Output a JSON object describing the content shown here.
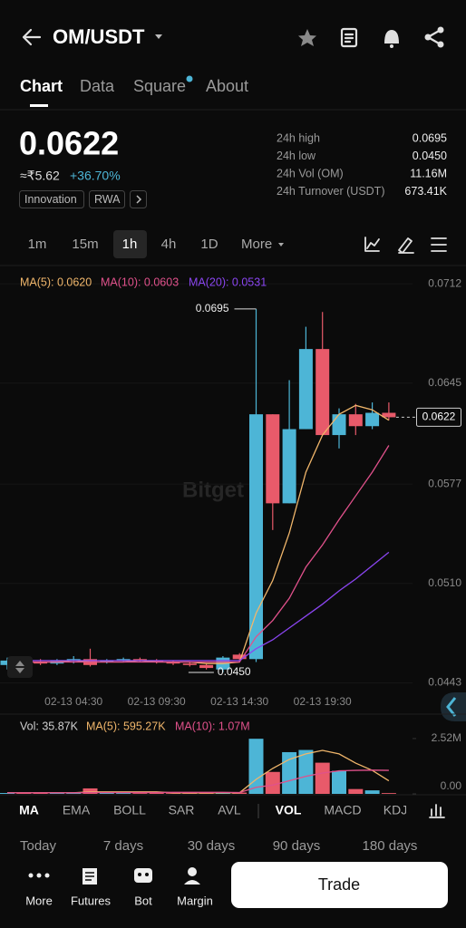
{
  "header": {
    "title": "OM/USDT"
  },
  "tabs": [
    "Chart",
    "Data",
    "Square",
    "About"
  ],
  "price": {
    "last": "0.0622",
    "local": "≈₹5.62",
    "change": "+36.70%",
    "tags": [
      "Innovation",
      "RWA"
    ]
  },
  "stats": [
    {
      "label": "24h high",
      "value": "0.0695"
    },
    {
      "label": "24h low",
      "value": "0.0450"
    },
    {
      "label": "24h Vol (OM)",
      "value": "11.16M"
    },
    {
      "label": "24h Turnover (USDT)",
      "value": "673.41K"
    }
  ],
  "intervals": [
    "1m",
    "15m",
    "1h",
    "4h",
    "1D",
    "More"
  ],
  "watermark": "Bitget",
  "chart_data": [
    {
      "type": "candlestick",
      "categories": [
        null,
        null,
        null,
        null,
        "02-13 04:30",
        null,
        null,
        null,
        null,
        "02-13 09:30",
        null,
        null,
        null,
        null,
        "02-13 14:30",
        null,
        null,
        null,
        null,
        "02-13 19:30",
        null,
        null,
        null,
        null
      ],
      "open": [
        0.0455,
        0.0458,
        0.0457,
        0.0456,
        0.0458,
        0.0459,
        0.0457,
        0.0458,
        0.0459,
        0.0458,
        0.0457,
        0.0456,
        0.0455,
        0.0452,
        0.0462,
        0.0459,
        0.0624,
        0.0564,
        0.0614,
        0.0668,
        0.061,
        0.0624,
        0.0616,
        0.0625
      ],
      "high": [
        0.046,
        0.046,
        0.0459,
        0.0459,
        0.0461,
        0.0466,
        0.0459,
        0.046,
        0.046,
        0.0459,
        0.0458,
        0.0457,
        0.0456,
        0.0461,
        0.0463,
        0.0695,
        0.0624,
        0.0647,
        0.0683,
        0.0693,
        0.0628,
        0.0631,
        0.0632,
        0.0632
      ],
      "low": [
        0.0452,
        0.0455,
        0.0455,
        0.0455,
        0.0456,
        0.0454,
        0.0456,
        0.0457,
        0.0457,
        0.0456,
        0.0455,
        0.0454,
        0.0452,
        0.045,
        0.0457,
        0.0457,
        0.0546,
        0.0564,
        0.0614,
        0.061,
        0.0601,
        0.061,
        0.0614,
        0.062
      ],
      "close": [
        0.0458,
        0.0457,
        0.0456,
        0.0458,
        0.0459,
        0.0455,
        0.0458,
        0.0459,
        0.0458,
        0.0457,
        0.0456,
        0.0455,
        0.0453,
        0.046,
        0.0459,
        0.0624,
        0.0564,
        0.0614,
        0.0668,
        0.061,
        0.0624,
        0.0616,
        0.0625,
        0.0622
      ],
      "up_color": "#4db5d6",
      "down_color": "#e85a6a",
      "series": [
        {
          "name": "MA(5): 0.0620",
          "color": "#f0b66b",
          "values": [
            0.0456,
            0.0457,
            0.0457,
            0.0457,
            0.0458,
            0.0457,
            0.0457,
            0.0457,
            0.0458,
            0.0457,
            0.0457,
            0.0457,
            0.0456,
            0.0456,
            0.0457,
            0.049,
            0.0512,
            0.0544,
            0.0585,
            0.061,
            0.0624,
            0.063,
            0.0627,
            0.062
          ]
        },
        {
          "name": "MA(10): 0.0603",
          "color": "#e0518b",
          "values": [
            0.0457,
            0.0457,
            0.0457,
            0.0457,
            0.0457,
            0.0457,
            0.0457,
            0.0457,
            0.0457,
            0.0457,
            0.0457,
            0.0457,
            0.0457,
            0.0457,
            0.0457,
            0.0474,
            0.0485,
            0.05,
            0.0521,
            0.0536,
            0.0553,
            0.0569,
            0.0585,
            0.0603
          ]
        },
        {
          "name": "MA(20): 0.0531",
          "color": "#8a45f0",
          "values": [
            0.0458,
            0.0458,
            0.0458,
            0.0458,
            0.0458,
            0.0458,
            0.0458,
            0.0458,
            0.0458,
            0.0458,
            0.0458,
            0.0458,
            0.0458,
            0.0458,
            0.0458,
            0.0466,
            0.0472,
            0.048,
            0.0488,
            0.0496,
            0.0505,
            0.0513,
            0.0522,
            0.0531
          ]
        }
      ],
      "ylim": [
        0.0439,
        0.072
      ],
      "yticks": [
        {
          "value": 0.0443,
          "label": "0.0443"
        },
        {
          "value": 0.051,
          "label": "0.0510"
        },
        {
          "value": 0.0577,
          "label": "0.0577"
        },
        {
          "value": 0.0645,
          "label": "0.0645"
        },
        {
          "value": 0.0712,
          "label": "0.0712"
        }
      ],
      "grid": true,
      "last_price": 0.0622,
      "high_label": "0.0695",
      "low_label": "0.0450"
    },
    {
      "type": "bar",
      "series": [
        {
          "name": "Vol: 35.87K",
          "type": "bar",
          "color": "#cfcfcf",
          "values": [
            40000,
            30000,
            35000,
            45000,
            60000,
            250000,
            50000,
            40000,
            35000,
            45000,
            30000,
            40000,
            30000,
            80000,
            60000,
            2510000,
            1000000,
            1900000,
            2000000,
            1420000,
            1050000,
            220000,
            160000,
            35870
          ]
        },
        {
          "name": "MA(5): 595.27K",
          "type": "line",
          "color": "#f0b66b",
          "values": [
            50000,
            50000,
            50000,
            50000,
            50000,
            90000,
            90000,
            90000,
            90000,
            90000,
            50000,
            40000,
            40000,
            50000,
            50000,
            660000,
            1160000,
            1570000,
            1820000,
            1980000,
            1820000,
            1400000,
            1070000,
            595270
          ]
        },
        {
          "name": "MA(10): 1.07M",
          "type": "line",
          "color": "#e0518b",
          "values": [
            50000,
            50000,
            50000,
            50000,
            50000,
            60000,
            60000,
            60000,
            60000,
            60000,
            70000,
            70000,
            70000,
            70000,
            60000,
            300000,
            400000,
            600000,
            800000,
            950000,
            1050000,
            1070000,
            1080000,
            1070000
          ]
        }
      ],
      "up_color": "#4db5d6",
      "down_color": "#e85a6a",
      "ylim": [
        0,
        2600000
      ],
      "yticks": [
        {
          "value": 0,
          "label": "0.00"
        },
        {
          "value": 2520000,
          "label": "2.52M"
        }
      ]
    }
  ],
  "indicators": [
    "MA",
    "EMA",
    "BOLL",
    "SAR",
    "AVL",
    "VOL",
    "MACD",
    "KDJ"
  ],
  "ranges": [
    "Today",
    "7 days",
    "30 days",
    "90 days",
    "180 days"
  ],
  "nav": [
    "More",
    "Futures",
    "Bot",
    "Margin"
  ],
  "trade": "Trade"
}
